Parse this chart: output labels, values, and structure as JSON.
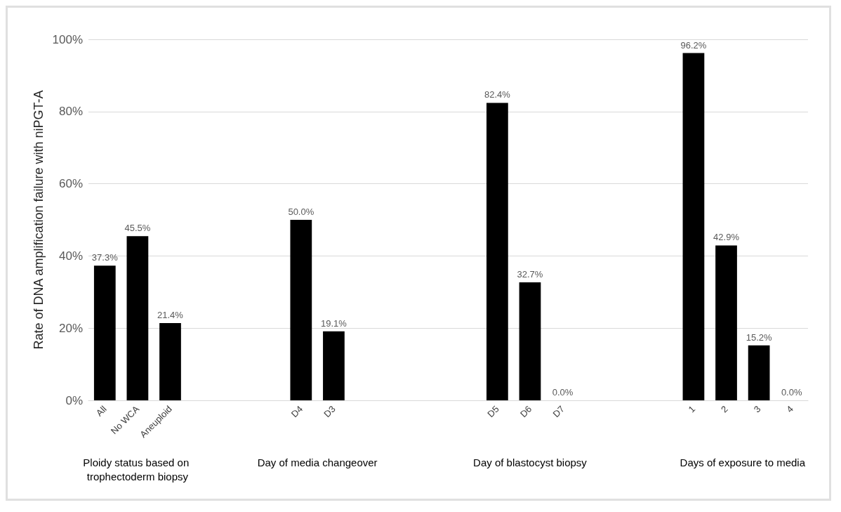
{
  "chart_data": {
    "type": "bar",
    "ylabel": "Rate of DNA amplification failure with niPGT-A",
    "categories": [
      "All",
      "No WCA",
      "Aneuploid",
      null,
      null,
      null,
      "D4",
      "D3",
      null,
      null,
      null,
      null,
      "D5",
      "D6",
      "D7",
      null,
      null,
      null,
      "1",
      "2",
      "3",
      "4"
    ],
    "values": [
      37.3,
      45.5,
      21.4,
      null,
      null,
      null,
      50.0,
      19.1,
      null,
      null,
      null,
      null,
      82.4,
      32.7,
      0.0,
      null,
      null,
      null,
      96.2,
      42.9,
      15.2,
      0.0
    ],
    "value_labels": [
      "37.3%",
      "45.5%",
      "21.4%",
      null,
      null,
      null,
      "50.0%",
      "19.1%",
      null,
      null,
      null,
      null,
      "82.4%",
      "32.7%",
      "0.0%",
      null,
      null,
      null,
      "96.2%",
      "42.9%",
      "15.2%",
      "0.0%"
    ],
    "color": "#000000",
    "ylim": [
      0,
      100
    ],
    "yticks": [
      {
        "value": 0,
        "label": "0%"
      },
      {
        "value": 20,
        "label": "20%"
      },
      {
        "value": 40,
        "label": "40%"
      },
      {
        "value": 60,
        "label": "60%"
      },
      {
        "value": 80,
        "label": "80%"
      },
      {
        "value": 100,
        "label": "100%"
      }
    ],
    "grid": "y",
    "annotations": [
      "Ploidy status based on trophectoderm biopsy",
      "Day of media changeover",
      "Day of blastocyst biopsy",
      "Days of exposure to media"
    ]
  }
}
